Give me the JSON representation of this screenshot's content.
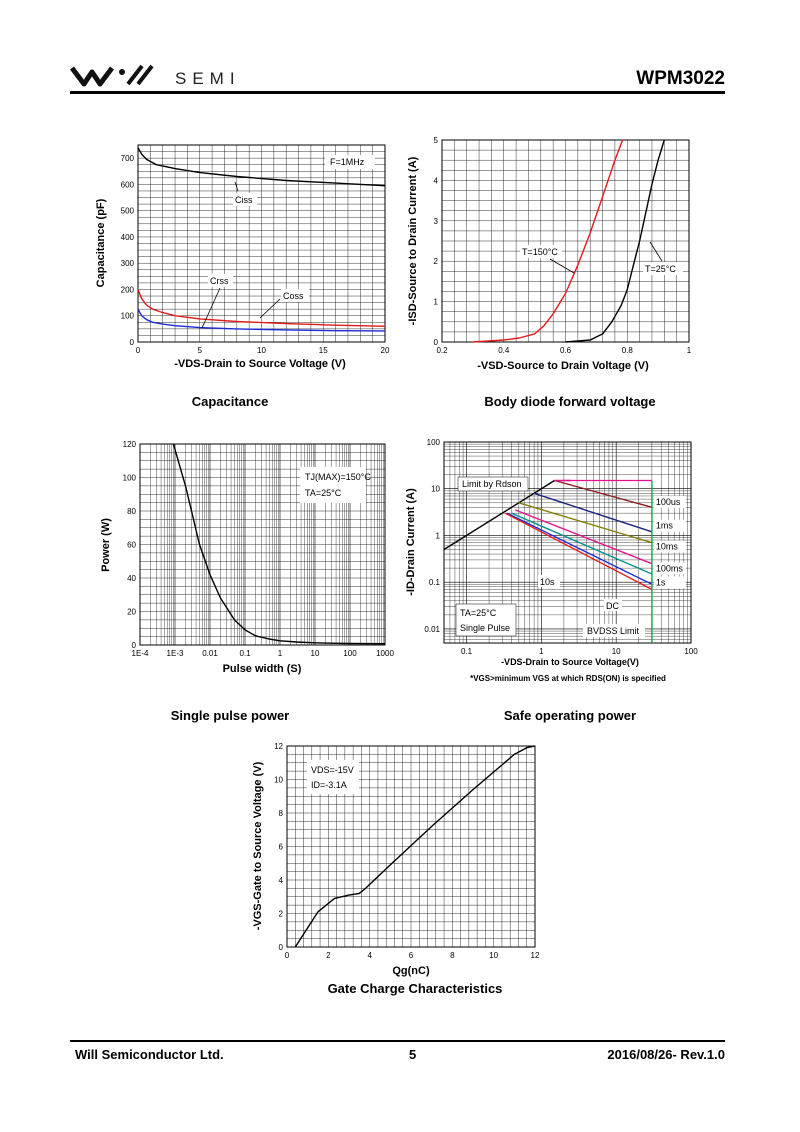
{
  "header": {
    "brand": "SEMI",
    "part_number": "WPM3022"
  },
  "footer": {
    "company": "Will Semiconductor Ltd.",
    "page": "5",
    "date_rev": "2016/08/26- Rev.1.0"
  },
  "captions": {
    "capacitance": "Capacitance",
    "body_diode": "Body diode forward voltage",
    "single_pulse": "Single pulse power",
    "soa": "Safe operating power",
    "gate_charge": "Gate Charge Characteristics"
  },
  "colors": {
    "ciss": "#000000",
    "crss": "#e21b1b",
    "coss": "#1d2bd6",
    "t150": "#e21b1b",
    "t25": "#000000"
  },
  "chart_data": [
    {
      "id": "capacitance",
      "type": "line",
      "title": "Capacitance",
      "xlabel": "-VDS-Drain to Source Voltage (V)",
      "ylabel": "Capacitance (pF)",
      "xlim": [
        0,
        20
      ],
      "ylim": [
        0,
        750
      ],
      "xticks": [
        0,
        5,
        10,
        15,
        20
      ],
      "yticks": [
        0,
        100,
        200,
        300,
        400,
        500,
        600,
        700
      ],
      "annotations": [
        "F=1MHz",
        "Ciss",
        "Crss",
        "Coss"
      ],
      "series": [
        {
          "name": "Ciss",
          "x": [
            0,
            0.3,
            0.7,
            1.5,
            3,
            5,
            8,
            12,
            16,
            20
          ],
          "y": [
            740,
            715,
            695,
            675,
            660,
            645,
            630,
            615,
            605,
            595
          ]
        },
        {
          "name": "Crss",
          "x": [
            0,
            0.3,
            0.7,
            1.2,
            2,
            3,
            5,
            8,
            12,
            16,
            20
          ],
          "y": [
            200,
            165,
            140,
            125,
            112,
            100,
            88,
            78,
            70,
            64,
            60
          ]
        },
        {
          "name": "Coss",
          "x": [
            0,
            0.3,
            0.7,
            1.2,
            2,
            3,
            5,
            8,
            12,
            16,
            20
          ],
          "y": [
            125,
            100,
            85,
            75,
            68,
            62,
            55,
            50,
            46,
            43,
            42
          ]
        }
      ]
    },
    {
      "id": "body_diode",
      "type": "line",
      "title": "Body diode forward voltage",
      "xlabel": "-VSD-Source to Drain Voltage (V)",
      "ylabel": "-ISD-Source to Drain Current (A)",
      "xlim": [
        0.2,
        1.0
      ],
      "ylim": [
        0,
        5
      ],
      "xticks": [
        0.2,
        0.4,
        0.6,
        0.8,
        1.0
      ],
      "yticks": [
        0,
        1,
        2,
        3,
        4,
        5
      ],
      "annotations": [
        "T=150°C",
        "T=25°C"
      ],
      "series": [
        {
          "name": "T=150°C",
          "x": [
            0.3,
            0.4,
            0.45,
            0.5,
            0.53,
            0.56,
            0.6,
            0.64,
            0.68,
            0.72,
            0.76,
            0.785
          ],
          "y": [
            0,
            0.05,
            0.1,
            0.2,
            0.4,
            0.7,
            1.2,
            1.9,
            2.7,
            3.6,
            4.5,
            5
          ]
        },
        {
          "name": "T=25°C",
          "x": [
            0.6,
            0.68,
            0.72,
            0.75,
            0.78,
            0.8,
            0.82,
            0.84,
            0.86,
            0.88,
            0.9,
            0.92
          ],
          "y": [
            0,
            0.05,
            0.2,
            0.5,
            0.9,
            1.3,
            1.9,
            2.5,
            3.2,
            3.9,
            4.5,
            5
          ]
        }
      ]
    },
    {
      "id": "single_pulse",
      "type": "line",
      "title": "Single pulse power",
      "xlabel": "Pulse width (S)",
      "ylabel": "Power (W)",
      "xscale": "log",
      "xlim": [
        0.0001,
        1000
      ],
      "ylim": [
        0,
        120
      ],
      "xticks": [
        0.0001,
        0.001,
        0.01,
        0.1,
        1,
        10,
        100,
        1000
      ],
      "xticklabels": [
        "1E-4",
        "1E-3",
        "0.01",
        "0.1",
        "1",
        "10",
        "100",
        "1000"
      ],
      "yticks": [
        0,
        20,
        40,
        60,
        80,
        100,
        120
      ],
      "annotations": [
        "TJ(MAX)=150°C",
        "TA=25°C"
      ],
      "series": [
        {
          "name": "Power",
          "x": [
            0.0009,
            0.002,
            0.005,
            0.01,
            0.02,
            0.05,
            0.1,
            0.2,
            0.5,
            1,
            3,
            10,
            30,
            100,
            1000
          ],
          "y": [
            120,
            95,
            60,
            42,
            28,
            15,
            9,
            5.5,
            3.5,
            2.5,
            1.8,
            1.3,
            1.1,
            0.9,
            0.8
          ]
        }
      ]
    },
    {
      "id": "soa",
      "type": "line",
      "title": "Safe operating power",
      "xlabel": "-VDS-Drain to Source Voltage(V)",
      "ylabel": "-ID-Drain Current (A)",
      "xscale": "log",
      "yscale": "log",
      "xlim": [
        0.05,
        100
      ],
      "ylim": [
        0.005,
        100
      ],
      "xticks": [
        0.1,
        1,
        10,
        100
      ],
      "xticklabels": [
        "0.1",
        "1",
        "10",
        "100"
      ],
      "yticks": [
        0.01,
        0.1,
        1,
        10,
        100
      ],
      "yticklabels": [
        "0.01",
        "0.1",
        "1",
        "10",
        "100"
      ],
      "note": "*VGS>minimum VGS at which RDS(ON) is specified",
      "annotations": [
        "Limit by Rdson",
        "TA=25°C",
        "Single Pulse",
        "BVDSS Limit",
        "10s",
        "DC"
      ],
      "series": [
        {
          "name": "Limit by Rdson",
          "color": "#000000",
          "x": [
            0.05,
            1.5
          ],
          "y": [
            0.5,
            15
          ]
        },
        {
          "name": "100us",
          "color": "#8b1a1a",
          "x": [
            1.5,
            30
          ],
          "y": [
            15,
            4
          ]
        },
        {
          "name": "1ms",
          "color": "#1a237e",
          "x": [
            0.8,
            30
          ],
          "y": [
            8,
            1.2
          ]
        },
        {
          "name": "10ms",
          "color": "#808000",
          "x": [
            0.5,
            30
          ],
          "y": [
            5,
            0.7
          ]
        },
        {
          "name": "100ms",
          "color": "#e0138c",
          "x": [
            0.45,
            30
          ],
          "y": [
            3.5,
            0.25
          ]
        },
        {
          "name": "1s",
          "color": "#0f8f8f",
          "x": [
            0.4,
            30
          ],
          "y": [
            3.0,
            0.15
          ]
        },
        {
          "name": "10s",
          "color": "#1d2bd6",
          "x": [
            0.35,
            30
          ],
          "y": [
            3.0,
            0.09
          ]
        },
        {
          "name": "DC",
          "color": "#e21b1b",
          "x": [
            0.33,
            30
          ],
          "y": [
            3.0,
            0.07
          ]
        },
        {
          "name": "BVDSS Limit",
          "color": "#18a34a",
          "x": [
            30,
            30
          ],
          "y": [
            0.005,
            15
          ]
        }
      ]
    },
    {
      "id": "gate_charge",
      "type": "line",
      "title": "Gate Charge Characteristics",
      "xlabel": "Qg(nC)",
      "ylabel": "-VGS-Gate to Source Voltage (V)",
      "xlim": [
        0,
        12
      ],
      "ylim": [
        0,
        12
      ],
      "xticks": [
        0,
        2,
        4,
        6,
        8,
        10,
        12
      ],
      "yticks": [
        0,
        2,
        4,
        6,
        8,
        10,
        12
      ],
      "annotations": [
        "VDS=-15V",
        "ID=-3.1A"
      ],
      "series": [
        {
          "name": "VGS",
          "x": [
            0.4,
            1.5,
            2.3,
            3,
            3.5,
            3.8,
            5,
            7,
            9,
            11,
            11.6,
            12
          ],
          "y": [
            0,
            2.1,
            2.9,
            3.1,
            3.2,
            3.5,
            4.9,
            7.2,
            9.4,
            11.5,
            11.9,
            12
          ]
        }
      ]
    }
  ]
}
